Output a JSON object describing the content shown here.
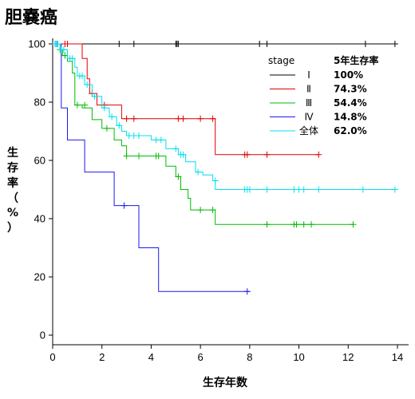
{
  "title": "胆嚢癌",
  "chart_data": {
    "type": "line",
    "xlabel": "生存年数",
    "ylabel": [
      "生",
      "存",
      "率",
      "（",
      "%",
      "）"
    ],
    "xlim": [
      0,
      14
    ],
    "ylim": [
      0,
      100
    ],
    "xticks": [
      "0",
      "2",
      "4",
      "6",
      "8",
      "10",
      "12",
      "14"
    ],
    "yticks": [
      "0",
      "20",
      "40",
      "60",
      "80",
      "100"
    ],
    "grid": false,
    "legend": {
      "position": "top-right",
      "header_label": "stage",
      "header_value": "5年生存率"
    },
    "series": [
      {
        "name": "Ⅰ",
        "rate": "100%",
        "color": "#000000",
        "steps": [
          [
            0,
            100
          ],
          [
            14,
            100
          ]
        ],
        "censors": [
          [
            0.2,
            100
          ],
          [
            0.6,
            100
          ],
          [
            2.7,
            100
          ],
          [
            3.3,
            100
          ],
          [
            5.0,
            100
          ],
          [
            5.05,
            100
          ],
          [
            5.1,
            100
          ],
          [
            8.4,
            100
          ],
          [
            8.7,
            100
          ],
          [
            12.7,
            100
          ],
          [
            13.9,
            100
          ]
        ]
      },
      {
        "name": "Ⅱ",
        "rate": "74.3%",
        "color": "#e00000",
        "steps": [
          [
            0,
            100
          ],
          [
            1.2,
            100
          ],
          [
            1.2,
            95
          ],
          [
            1.4,
            95
          ],
          [
            1.4,
            88
          ],
          [
            1.5,
            88
          ],
          [
            1.5,
            83
          ],
          [
            1.8,
            83
          ],
          [
            1.8,
            79
          ],
          [
            2.8,
            79
          ],
          [
            2.8,
            74.3
          ],
          [
            6.6,
            74.3
          ],
          [
            6.6,
            62
          ],
          [
            10.8,
            62
          ]
        ],
        "censors": [
          [
            0.5,
            100
          ],
          [
            0.6,
            100
          ],
          [
            1.6,
            83
          ],
          [
            2.1,
            79
          ],
          [
            3.0,
            74.3
          ],
          [
            3.3,
            74.3
          ],
          [
            5.1,
            74.3
          ],
          [
            5.3,
            74.3
          ],
          [
            6.0,
            74.3
          ],
          [
            6.5,
            74.3
          ],
          [
            7.8,
            62
          ],
          [
            7.9,
            62
          ],
          [
            8.7,
            62
          ],
          [
            10.8,
            62
          ]
        ]
      },
      {
        "name": "Ⅲ",
        "rate": "54.4%",
        "color": "#00bb00",
        "steps": [
          [
            0,
            100
          ],
          [
            0.3,
            100
          ],
          [
            0.3,
            98
          ],
          [
            0.4,
            98
          ],
          [
            0.4,
            96
          ],
          [
            0.6,
            96
          ],
          [
            0.6,
            94
          ],
          [
            0.8,
            94
          ],
          [
            0.8,
            90
          ],
          [
            0.9,
            90
          ],
          [
            0.9,
            79
          ],
          [
            1.2,
            79
          ],
          [
            1.2,
            78
          ],
          [
            1.6,
            78
          ],
          [
            1.6,
            74
          ],
          [
            2.0,
            74
          ],
          [
            2.0,
            71
          ],
          [
            2.5,
            71
          ],
          [
            2.5,
            67
          ],
          [
            2.8,
            67
          ],
          [
            2.8,
            65
          ],
          [
            3.0,
            65
          ],
          [
            3.0,
            61.5
          ],
          [
            4.6,
            61.5
          ],
          [
            4.6,
            58
          ],
          [
            5.0,
            58
          ],
          [
            5.0,
            54.4
          ],
          [
            5.2,
            54.4
          ],
          [
            5.2,
            50
          ],
          [
            5.5,
            50
          ],
          [
            5.5,
            47
          ],
          [
            5.6,
            47
          ],
          [
            5.6,
            43
          ],
          [
            6.6,
            43
          ],
          [
            6.6,
            38
          ],
          [
            12.2,
            38
          ]
        ],
        "censors": [
          [
            0.3,
            98
          ],
          [
            0.5,
            96
          ],
          [
            1.0,
            79
          ],
          [
            1.3,
            79
          ],
          [
            2.2,
            71
          ],
          [
            3.0,
            61.5
          ],
          [
            3.5,
            61.5
          ],
          [
            4.2,
            61.5
          ],
          [
            4.3,
            61.5
          ],
          [
            5.1,
            54.4
          ],
          [
            6.0,
            43
          ],
          [
            6.5,
            43
          ],
          [
            8.7,
            38
          ],
          [
            9.8,
            38
          ],
          [
            9.9,
            38
          ],
          [
            10.2,
            38
          ],
          [
            10.5,
            38
          ],
          [
            12.2,
            38
          ]
        ]
      },
      {
        "name": "Ⅳ",
        "rate": "14.8%",
        "color": "#1a1aee",
        "steps": [
          [
            0,
            100
          ],
          [
            0.35,
            100
          ],
          [
            0.35,
            78
          ],
          [
            0.6,
            78
          ],
          [
            0.6,
            67
          ],
          [
            1.3,
            67
          ],
          [
            1.3,
            56
          ],
          [
            2.5,
            56
          ],
          [
            2.5,
            44.5
          ],
          [
            3.5,
            44.5
          ],
          [
            3.5,
            30
          ],
          [
            4.3,
            30
          ],
          [
            4.3,
            15
          ],
          [
            8.0,
            15
          ]
        ],
        "censors": [
          [
            0.1,
            100
          ],
          [
            0.2,
            100
          ],
          [
            2.9,
            44.5
          ],
          [
            7.9,
            15
          ]
        ]
      },
      {
        "name": "全体",
        "rate": "62.0%",
        "color": "#00e0f0",
        "steps": [
          [
            0,
            100
          ],
          [
            0.3,
            100
          ],
          [
            0.3,
            98
          ],
          [
            0.6,
            98
          ],
          [
            0.6,
            95
          ],
          [
            0.9,
            95
          ],
          [
            0.9,
            92
          ],
          [
            1.0,
            92
          ],
          [
            1.0,
            89
          ],
          [
            1.3,
            89
          ],
          [
            1.3,
            86
          ],
          [
            1.6,
            86
          ],
          [
            1.6,
            82
          ],
          [
            2.0,
            82
          ],
          [
            2.0,
            78
          ],
          [
            2.3,
            78
          ],
          [
            2.3,
            75
          ],
          [
            2.6,
            75
          ],
          [
            2.6,
            72
          ],
          [
            2.8,
            72
          ],
          [
            2.8,
            70
          ],
          [
            3.0,
            70
          ],
          [
            3.0,
            68.5
          ],
          [
            4.0,
            68.5
          ],
          [
            4.0,
            67
          ],
          [
            4.6,
            67
          ],
          [
            4.6,
            64
          ],
          [
            5.1,
            64
          ],
          [
            5.1,
            62
          ],
          [
            5.4,
            62
          ],
          [
            5.4,
            59.5
          ],
          [
            5.8,
            59.5
          ],
          [
            5.8,
            56
          ],
          [
            6.1,
            56
          ],
          [
            6.1,
            55
          ],
          [
            6.5,
            55
          ],
          [
            6.5,
            53
          ],
          [
            6.6,
            53
          ],
          [
            6.6,
            50
          ],
          [
            14,
            50
          ]
        ],
        "censors": [
          [
            0.1,
            100
          ],
          [
            0.15,
            100
          ],
          [
            0.2,
            100
          ],
          [
            0.35,
            98
          ],
          [
            0.45,
            98
          ],
          [
            0.7,
            95
          ],
          [
            0.8,
            95
          ],
          [
            1.1,
            89
          ],
          [
            1.2,
            89
          ],
          [
            1.4,
            86
          ],
          [
            1.7,
            82
          ],
          [
            2.1,
            78
          ],
          [
            2.4,
            75
          ],
          [
            2.7,
            72
          ],
          [
            3.1,
            68.5
          ],
          [
            3.3,
            68.5
          ],
          [
            3.5,
            68.5
          ],
          [
            4.2,
            67
          ],
          [
            4.4,
            67
          ],
          [
            5.0,
            64
          ],
          [
            5.2,
            62
          ],
          [
            5.3,
            62
          ],
          [
            5.9,
            56
          ],
          [
            6.6,
            53
          ],
          [
            7.8,
            50
          ],
          [
            7.9,
            50
          ],
          [
            8.0,
            50
          ],
          [
            8.7,
            50
          ],
          [
            9.8,
            50
          ],
          [
            10.0,
            50
          ],
          [
            10.2,
            50
          ],
          [
            10.8,
            50
          ],
          [
            12.6,
            50
          ],
          [
            13.9,
            50
          ]
        ]
      }
    ]
  }
}
